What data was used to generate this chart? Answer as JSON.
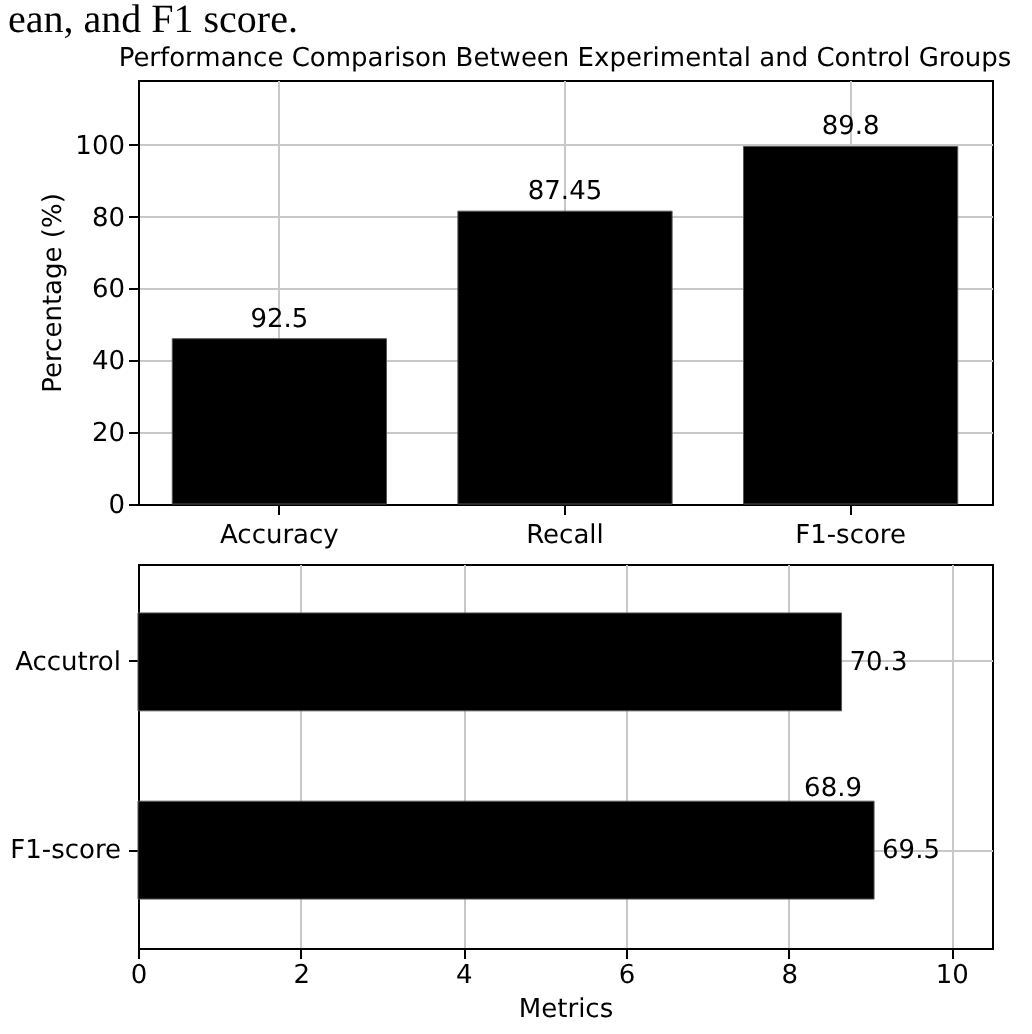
{
  "chart_data": [
    {
      "type": "bar",
      "title": "Performance Comparison Between Experimental and Control Groups",
      "ylabel": "Percentage (%)",
      "categories": [
        "Accuracy",
        "Recall",
        "F1-score"
      ],
      "values": [
        46,
        81.5,
        99.5
      ],
      "color": "#000000",
      "ylim": [
        0,
        118
      ],
      "yticks": [
        0,
        20,
        40,
        60,
        80,
        100
      ],
      "grid": true,
      "annotations": [
        "ean, and F1 score.",
        {
          "text": "92.5",
          "x": "Accuracy",
          "y": 46
        },
        {
          "text": "87.45",
          "x": "Recall",
          "y": 81.5
        },
        {
          "text": "89.8",
          "x": "F1-score",
          "y": 99.5
        }
      ]
    },
    {
      "type": "bar",
      "orientation": "horizontal",
      "xlabel": "Metrics",
      "categories": [
        "Accutrol",
        "F1-score"
      ],
      "values": [
        8.65,
        9.05
      ],
      "color": "#000000",
      "xlim": [
        0,
        10.5
      ],
      "xticks": [
        0,
        2,
        4,
        6,
        8,
        10
      ],
      "grid": true,
      "annotations": [
        {
          "text": "70.3",
          "x": 8.65,
          "y": "Accutrol"
        },
        {
          "text": "69.5",
          "x": 9.05,
          "y": "F1-score"
        },
        "68.9"
      ]
    }
  ]
}
